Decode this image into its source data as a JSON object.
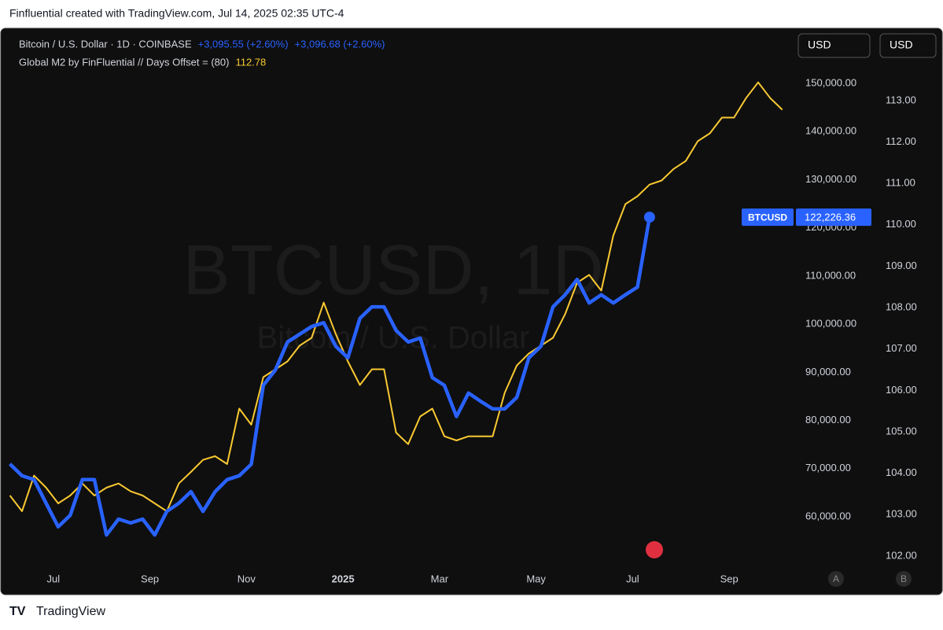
{
  "header": "Finfluential created with TradingView.com, Jul 14, 2025 02:35 UTC-4",
  "footer": "TradingView",
  "chart_data": {
    "type": "line",
    "watermark": "BTCUSD, 1D",
    "watermark_sub": "Bitcoin / U.S. Dollar",
    "currency_buttons": [
      "USD",
      "USD"
    ],
    "scale_buttons": [
      "A",
      "B"
    ],
    "btc_changes": [
      "+3,095.55 (+2.60%)",
      "+3,096.68 (+2.60%)"
    ],
    "x": [
      -0.9,
      -0.65,
      -0.4,
      -0.15,
      0.1,
      0.35,
      0.6,
      0.85,
      1.1,
      1.35,
      1.6,
      1.85,
      2.1,
      2.35,
      2.6,
      2.85,
      3.1,
      3.35,
      3.6,
      3.85,
      4.1,
      4.35,
      4.6,
      4.85,
      5.1,
      5.35,
      5.6,
      5.85,
      6.1,
      6.35,
      6.6,
      6.85,
      7.1,
      7.35,
      7.6,
      7.85,
      8.1,
      8.35,
      8.6,
      8.85,
      9.1,
      9.35,
      9.6,
      9.85,
      10.1,
      10.35,
      10.6,
      10.85,
      11.1,
      11.35,
      11.6,
      11.85,
      12.1,
      12.35,
      12.6,
      12.85,
      13.1,
      13.35,
      13.6,
      13.85,
      14.1,
      14.35,
      14.6,
      14.85,
      15.1
    ],
    "xlim": [
      -0.91,
      15.35
    ],
    "xticks": [
      {
        "value": 0,
        "label": "Jul"
      },
      {
        "value": 2,
        "label": "Sep"
      },
      {
        "value": 4,
        "label": "Nov"
      },
      {
        "value": 6,
        "label": "2025"
      },
      {
        "value": 8,
        "label": "Mar"
      },
      {
        "value": 10,
        "label": "May"
      },
      {
        "value": 12,
        "label": "Jul"
      },
      {
        "value": 14,
        "label": "Sep"
      }
    ],
    "ylim": [
      49700,
      160800
    ],
    "yticks": [
      {
        "value": 60000,
        "label": "60,000.00"
      },
      {
        "value": 70000,
        "label": "70,000.00"
      },
      {
        "value": 80000,
        "label": "80,000.00"
      },
      {
        "value": 90000,
        "label": "90,000.00"
      },
      {
        "value": 100000,
        "label": "100,000.00"
      },
      {
        "value": 110000,
        "label": "110,000.00"
      },
      {
        "value": 120000,
        "label": "120,000.00"
      },
      {
        "value": 130000,
        "label": "130,000.00"
      },
      {
        "value": 140000,
        "label": "140,000.00"
      },
      {
        "value": 150000,
        "label": "150,000.00"
      }
    ],
    "y2lim": [
      101.75,
      114.67
    ],
    "y2ticks": [
      {
        "value": 102,
        "label": "102.00"
      },
      {
        "value": 103,
        "label": "103.00"
      },
      {
        "value": 104,
        "label": "104.00"
      },
      {
        "value": 105,
        "label": "105.00"
      },
      {
        "value": 106,
        "label": "106.00"
      },
      {
        "value": 107,
        "label": "107.00"
      },
      {
        "value": 108,
        "label": "108.00"
      },
      {
        "value": 109,
        "label": "109.00"
      },
      {
        "value": 110,
        "label": "110.00"
      },
      {
        "value": 111,
        "label": "111.00"
      },
      {
        "value": 112,
        "label": "112.00"
      },
      {
        "value": 113,
        "label": "113.00"
      }
    ],
    "current_price": {
      "symbol": "BTCUSD",
      "value": 122226.36,
      "label": "122,226.36"
    },
    "series": [
      {
        "name": "Global M2 by FinFluential // Days Offset = (80)",
        "color": "#f9c932",
        "axis": "y2",
        "last_value": 112.78,
        "values": [
          103.46,
          103.08,
          103.94,
          103.65,
          103.27,
          103.46,
          103.75,
          103.46,
          103.65,
          103.75,
          103.56,
          103.46,
          103.27,
          103.08,
          103.75,
          104.03,
          104.32,
          104.41,
          104.22,
          105.56,
          105.17,
          106.32,
          106.51,
          106.7,
          107.08,
          107.27,
          108.12,
          107.36,
          106.7,
          106.13,
          106.51,
          106.51,
          104.98,
          104.7,
          105.37,
          105.56,
          104.89,
          104.79,
          104.89,
          104.89,
          104.89,
          105.94,
          106.6,
          106.89,
          107.08,
          107.27,
          107.84,
          108.6,
          108.79,
          108.41,
          109.74,
          110.5,
          110.69,
          110.97,
          111.07,
          111.35,
          111.54,
          112.02,
          112.21,
          112.59,
          112.59,
          113.06,
          113.44,
          113.06,
          112.78
        ]
      },
      {
        "name": "Bitcoin / U.S. Dollar · 1D · COINBASE",
        "color": "#2962ff",
        "values": [
          70950,
          68500,
          67700,
          62800,
          57900,
          60300,
          67700,
          67700,
          56200,
          59500,
          58700,
          59500,
          56200,
          61100,
          62800,
          65200,
          61100,
          65200,
          67700,
          68500,
          70900,
          87300,
          90500,
          96300,
          97900,
          99500,
          100300,
          95400,
          93000,
          101200,
          103600,
          103600,
          98700,
          96300,
          97100,
          88900,
          87300,
          80800,
          85700,
          84000,
          82400,
          82400,
          84800,
          93000,
          95400,
          103600,
          106100,
          109300,
          104400,
          106100,
          104400,
          106100,
          107700,
          122226.36,
          null,
          null,
          null,
          null,
          null,
          null,
          null,
          null,
          null,
          null,
          null
        ]
      }
    ]
  }
}
